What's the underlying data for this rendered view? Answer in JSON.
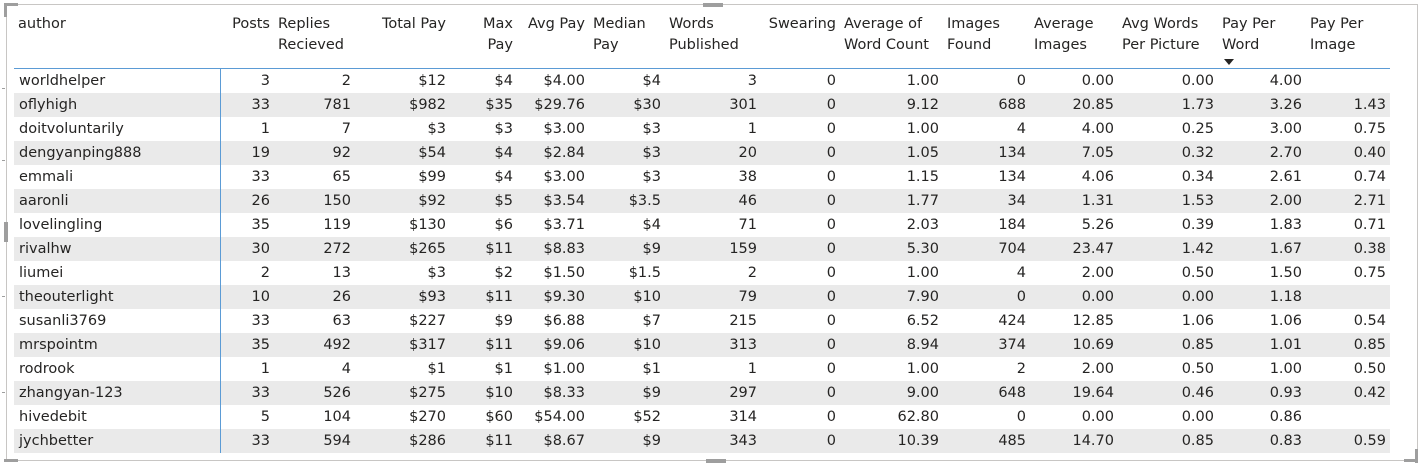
{
  "table": {
    "columns": [
      {
        "label": "author"
      },
      {
        "label": "Posts"
      },
      {
        "label": "Replies Recieved"
      },
      {
        "label": "Total Pay"
      },
      {
        "label": "Max Pay"
      },
      {
        "label": "Avg Pay"
      },
      {
        "label": "Median Pay"
      },
      {
        "label": "Words Published"
      },
      {
        "label": "Swearing"
      },
      {
        "label": "Average of Word Count"
      },
      {
        "label": "Images Found"
      },
      {
        "label": "Average Images"
      },
      {
        "label": "Avg Words Per Picture"
      },
      {
        "label": "Pay Per Word",
        "sorted": "desc"
      },
      {
        "label": "Pay Per Image"
      }
    ],
    "rows": [
      [
        "worldhelper",
        "3",
        "2",
        "$12",
        "$4",
        "$4.00",
        "$4",
        "3",
        "0",
        "1.00",
        "0",
        "0.00",
        "0.00",
        "4.00",
        ""
      ],
      [
        "oflyhigh",
        "33",
        "781",
        "$982",
        "$35",
        "$29.76",
        "$30",
        "301",
        "0",
        "9.12",
        "688",
        "20.85",
        "1.73",
        "3.26",
        "1.43"
      ],
      [
        "doitvoluntarily",
        "1",
        "7",
        "$3",
        "$3",
        "$3.00",
        "$3",
        "1",
        "0",
        "1.00",
        "4",
        "4.00",
        "0.25",
        "3.00",
        "0.75"
      ],
      [
        "dengyanping888",
        "19",
        "92",
        "$54",
        "$4",
        "$2.84",
        "$3",
        "20",
        "0",
        "1.05",
        "134",
        "7.05",
        "0.32",
        "2.70",
        "0.40"
      ],
      [
        "emmali",
        "33",
        "65",
        "$99",
        "$4",
        "$3.00",
        "$3",
        "38",
        "0",
        "1.15",
        "134",
        "4.06",
        "0.34",
        "2.61",
        "0.74"
      ],
      [
        "aaronli",
        "26",
        "150",
        "$92",
        "$5",
        "$3.54",
        "$3.5",
        "46",
        "0",
        "1.77",
        "34",
        "1.31",
        "1.53",
        "2.00",
        "2.71"
      ],
      [
        "lovelingling",
        "35",
        "119",
        "$130",
        "$6",
        "$3.71",
        "$4",
        "71",
        "0",
        "2.03",
        "184",
        "5.26",
        "0.39",
        "1.83",
        "0.71"
      ],
      [
        "rivalhw",
        "30",
        "272",
        "$265",
        "$11",
        "$8.83",
        "$9",
        "159",
        "0",
        "5.30",
        "704",
        "23.47",
        "1.42",
        "1.67",
        "0.38"
      ],
      [
        "liumei",
        "2",
        "13",
        "$3",
        "$2",
        "$1.50",
        "$1.5",
        "2",
        "0",
        "1.00",
        "4",
        "2.00",
        "0.50",
        "1.50",
        "0.75"
      ],
      [
        "theouterlight",
        "10",
        "26",
        "$93",
        "$11",
        "$9.30",
        "$10",
        "79",
        "0",
        "7.90",
        "0",
        "0.00",
        "0.00",
        "1.18",
        ""
      ],
      [
        "susanli3769",
        "33",
        "63",
        "$227",
        "$9",
        "$6.88",
        "$7",
        "215",
        "0",
        "6.52",
        "424",
        "12.85",
        "1.06",
        "1.06",
        "0.54"
      ],
      [
        "mrspointm",
        "35",
        "492",
        "$317",
        "$11",
        "$9.06",
        "$10",
        "313",
        "0",
        "8.94",
        "374",
        "10.69",
        "0.85",
        "1.01",
        "0.85"
      ],
      [
        "rodrook",
        "1",
        "4",
        "$1",
        "$1",
        "$1.00",
        "$1",
        "1",
        "0",
        "1.00",
        "2",
        "2.00",
        "0.50",
        "1.00",
        "0.50"
      ],
      [
        "zhangyan-123",
        "33",
        "526",
        "$275",
        "$10",
        "$8.33",
        "$9",
        "297",
        "0",
        "9.00",
        "648",
        "19.64",
        "0.46",
        "0.93",
        "0.42"
      ],
      [
        "hivedebit",
        "5",
        "104",
        "$270",
        "$60",
        "$54.00",
        "$52",
        "314",
        "0",
        "62.80",
        "0",
        "0.00",
        "0.00",
        "0.86",
        ""
      ],
      [
        "jychbetter",
        "33",
        "594",
        "$286",
        "$11",
        "$8.67",
        "$9",
        "343",
        "0",
        "10.39",
        "485",
        "14.70",
        "0.85",
        "0.83",
        "0.59"
      ]
    ]
  }
}
